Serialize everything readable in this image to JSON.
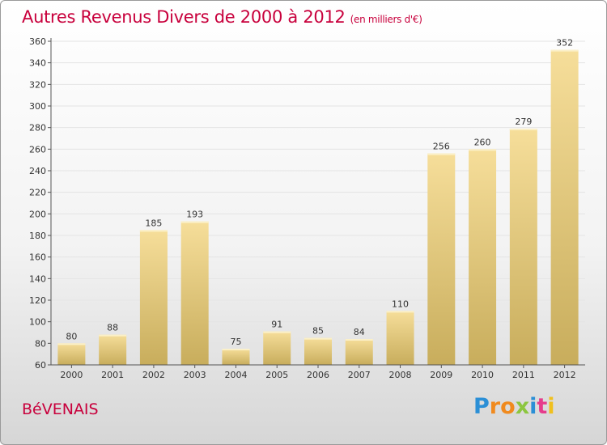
{
  "title": "Autres Revenus Divers de 2000 à 2012",
  "subtitle": "(en milliers d'€)",
  "commune": "BéVENAIS",
  "logo": {
    "letters": [
      "P",
      "r",
      "o",
      "x",
      "i",
      "t",
      "i"
    ],
    "colors": [
      "#2b8fd6",
      "#f08a1e",
      "#f08a1e",
      "#8cc63f",
      "#2b8fd6",
      "#e63c8c",
      "#f0c01e"
    ]
  },
  "colors": {
    "title": "#c8003c",
    "bar_top": "#f6de9a",
    "bar_bottom": "#c8ad5c",
    "grid": "#e4e4e4",
    "axis": "#555555"
  },
  "chart_data": {
    "type": "bar",
    "categories": [
      "2000",
      "2001",
      "2002",
      "2003",
      "2004",
      "2005",
      "2006",
      "2007",
      "2008",
      "2009",
      "2010",
      "2011",
      "2012"
    ],
    "values": [
      80,
      88,
      185,
      193,
      75,
      91,
      85,
      84,
      110,
      256,
      260,
      279,
      352
    ],
    "ylim": [
      60,
      360
    ],
    "yticks": [
      60,
      80,
      100,
      120,
      140,
      160,
      180,
      200,
      220,
      240,
      260,
      280,
      300,
      320,
      340,
      360
    ],
    "grid": true,
    "title": "Autres Revenus Divers de 2000 à 2012",
    "xlabel": "",
    "ylabel": ""
  }
}
